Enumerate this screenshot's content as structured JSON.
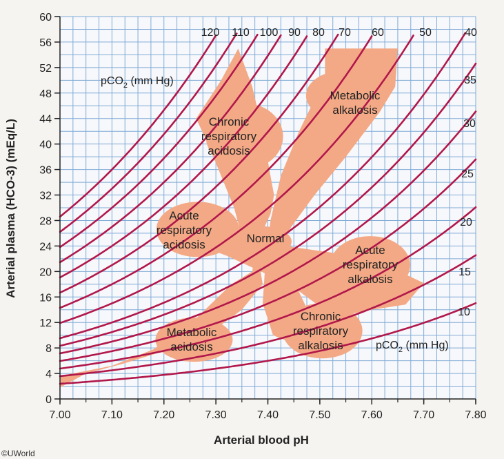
{
  "chart_data": {
    "type": "line",
    "title": "",
    "xlabel": "Arterial blood pH",
    "ylabel": "Arterial plasma (HCO-3) (mEq/L)",
    "xlim": [
      7.0,
      7.8
    ],
    "ylim": [
      0,
      60
    ],
    "x_ticks": [
      "7.00",
      "7.10",
      "7.20",
      "7.30",
      "7.40",
      "7.50",
      "7.60",
      "7.70",
      "7.80"
    ],
    "y_ticks": [
      "0",
      "4",
      "8",
      "12",
      "16",
      "20",
      "24",
      "28",
      "32",
      "36",
      "40",
      "44",
      "48",
      "52",
      "56",
      "60"
    ],
    "grid": true,
    "series_unit_label": "pCO2 (mm Hg)",
    "isobar_labels_top": [
      "120",
      "110",
      "100",
      "90",
      "80",
      "70",
      "60",
      "50",
      "40"
    ],
    "isobar_labels_right": [
      "35",
      "30",
      "25",
      "20",
      "15",
      "10"
    ],
    "isobars_pco2": [
      120,
      110,
      100,
      90,
      80,
      70,
      60,
      50,
      40,
      35,
      30,
      25,
      20,
      15,
      10
    ],
    "regions": [
      {
        "label_lines": [
          "Chronic",
          "respiratory",
          "acidosis"
        ]
      },
      {
        "label_lines": [
          "Metabolic",
          "alkalosis"
        ]
      },
      {
        "label_lines": [
          "Acute",
          "respiratory",
          "acidosis"
        ]
      },
      {
        "label_lines": [
          "Normal"
        ]
      },
      {
        "label_lines": [
          "Acute",
          "respiratory",
          "alkalosis"
        ]
      },
      {
        "label_lines": [
          "Chronic",
          "respiratory",
          "alkalosis"
        ]
      },
      {
        "label_lines": [
          "Metabolic",
          "acidosis"
        ]
      }
    ],
    "colors": {
      "grid": "#7faad6",
      "isobar": "#b1174a",
      "region": "#f3a986",
      "background": "#f6f4f1"
    }
  },
  "pco2_label_top": "pCO",
  "pco2_label_sub": "2",
  "pco2_label_unit": " (mm Hg)",
  "credit": "©UWorld"
}
